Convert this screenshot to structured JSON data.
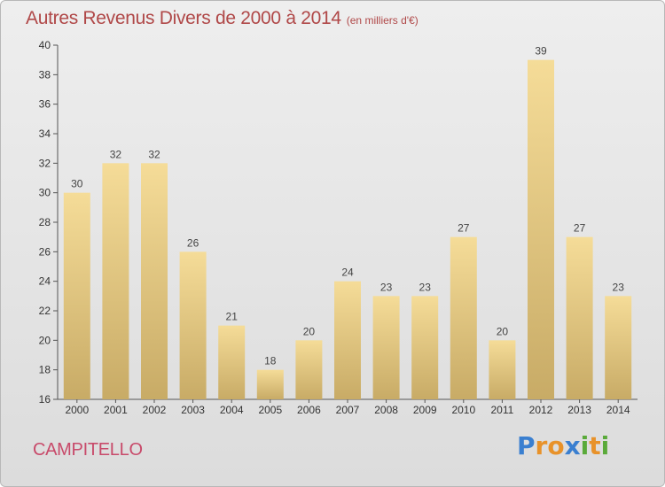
{
  "title": "Autres Revenus Divers de 2000 à 2014",
  "unit_note": "(en milliers d'€)",
  "city": "CAMPITELLO",
  "brand": {
    "letters": [
      "P",
      "r",
      "o",
      "x",
      "i",
      "t",
      "i"
    ],
    "colors": [
      "#3a7fd0",
      "#e8922a",
      "#e8922a",
      "#3a7fd0",
      "#5aaa3a",
      "#e8922a",
      "#5aaa3a"
    ]
  },
  "chart_data": {
    "type": "bar",
    "categories": [
      "2000",
      "2001",
      "2002",
      "2003",
      "2004",
      "2005",
      "2006",
      "2007",
      "2008",
      "2009",
      "2010",
      "2011",
      "2012",
      "2013",
      "2014"
    ],
    "values": [
      30,
      32,
      32,
      26,
      21,
      18,
      20,
      24,
      23,
      23,
      27,
      20,
      39,
      27,
      23
    ],
    "ylim": [
      16,
      40
    ],
    "yticks": [
      16,
      18,
      20,
      22,
      24,
      26,
      28,
      30,
      32,
      34,
      36,
      38,
      40
    ],
    "xlabel": "",
    "ylabel": "",
    "grid": false,
    "bar_color_top": "#f5dc98",
    "bar_color_bottom": "#c8ab66",
    "label_color": "#444444"
  }
}
